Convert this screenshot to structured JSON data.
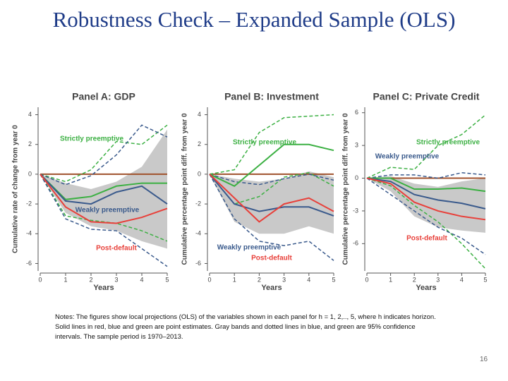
{
  "slide_title": "Robustness Check – Expanded Sample (OLS)",
  "notes": "Notes: The figures show local projections (OLS) of the variables shown in each panel for h = 1, 2,.., 5, where h indicates horizon. Solid lines in red, blue and green are point estimates. Gray bands and dotted lines in blue, and green are 95% confidence intervals. The sample period is 1970–2013.",
  "page_number": "16",
  "chart_data": [
    {
      "type": "line",
      "title": "Panel A: GDP",
      "xlabel": "Years",
      "ylabel": "Cumulative rate of change from year 0",
      "x": [
        0,
        1,
        2,
        3,
        4,
        5
      ],
      "xlim": [
        0,
        5
      ],
      "xticks": [
        0,
        1,
        2,
        3,
        4,
        5
      ],
      "ylim": [
        -6.5,
        4.5
      ],
      "yticks": [
        -6,
        -4,
        -2,
        0,
        2,
        4
      ],
      "band": {
        "color": "#c9c9c9",
        "lower": [
          0,
          -2.6,
          -3.5,
          -3.8,
          -4.5,
          -5.0
        ],
        "upper": [
          0,
          -0.6,
          -1.0,
          -0.5,
          0.5,
          3.0
        ]
      },
      "series": [
        {
          "color": "#a0522d",
          "style": "solid",
          "values": [
            0,
            0,
            0,
            0,
            0,
            0
          ]
        },
        {
          "color": "#3cb043",
          "style": "dashed",
          "values": [
            0,
            -0.5,
            0.3,
            2.2,
            2.0,
            3.3
          ]
        },
        {
          "color": "#3cb043",
          "style": "dashed",
          "values": [
            0,
            -2.8,
            -3.1,
            -3.3,
            -3.8,
            -4.5
          ]
        },
        {
          "color": "#3a5a8c",
          "style": "dashed",
          "values": [
            0,
            -0.7,
            -0.1,
            1.3,
            3.3,
            2.5
          ]
        },
        {
          "color": "#3a5a8c",
          "style": "dashed",
          "values": [
            0,
            -3.0,
            -3.7,
            -3.8,
            -5.0,
            -6.2
          ]
        },
        {
          "name": "Strictly preemptive",
          "color": "#3cb043",
          "style": "solid",
          "values": [
            0,
            -1.7,
            -1.5,
            -0.8,
            -0.6,
            -0.6
          ]
        },
        {
          "name": "Weakly preemptive",
          "color": "#3a5a8c",
          "style": "solid",
          "values": [
            0,
            -1.8,
            -2.0,
            -1.2,
            -0.8,
            -2.0
          ]
        },
        {
          "name": "Post-default",
          "color": "#e8403a",
          "style": "solid",
          "values": [
            0,
            -2.2,
            -3.2,
            -3.3,
            -2.9,
            -2.3
          ]
        }
      ]
    },
    {
      "type": "line",
      "title": "Panel B: Investment",
      "xlabel": "Years",
      "ylabel": "Cumulative percentage point diff. from year 0",
      "x": [
        0,
        1,
        2,
        3,
        4,
        5
      ],
      "xlim": [
        0,
        5
      ],
      "xticks": [
        0,
        1,
        2,
        3,
        4,
        5
      ],
      "ylim": [
        -6.5,
        4.5
      ],
      "yticks": [
        -6,
        -4,
        -2,
        0,
        2,
        4
      ],
      "band": {
        "color": "#c9c9c9",
        "lower": [
          0,
          -3.2,
          -4.0,
          -4.0,
          -3.5,
          -4.0
        ],
        "upper": [
          0,
          -0.3,
          -0.5,
          -0.3,
          0.2,
          -0.2
        ]
      },
      "series": [
        {
          "color": "#a0522d",
          "style": "solid",
          "values": [
            0,
            0,
            0,
            0,
            0,
            0
          ]
        },
        {
          "color": "#3cb043",
          "style": "dashed",
          "values": [
            0,
            0.3,
            2.8,
            3.8,
            3.9,
            4.0
          ]
        },
        {
          "color": "#3cb043",
          "style": "dashed",
          "values": [
            0,
            -2.0,
            -1.5,
            -0.2,
            0.1,
            -0.8
          ]
        },
        {
          "color": "#3a5a8c",
          "style": "dashed",
          "values": [
            0,
            -0.5,
            -0.7,
            -0.3,
            0,
            -0.4
          ]
        },
        {
          "color": "#3a5a8c",
          "style": "dashed",
          "values": [
            0,
            -3.0,
            -4.5,
            -4.8,
            -4.5,
            -5.8
          ]
        },
        {
          "name": "Strictly preemptive",
          "color": "#3cb043",
          "style": "solid",
          "values": [
            0,
            -0.8,
            0.6,
            2.0,
            2.0,
            1.6
          ]
        },
        {
          "name": "Weakly preemptive",
          "color": "#3a5a8c",
          "style": "solid",
          "values": [
            0,
            -2.0,
            -2.5,
            -2.2,
            -2.2,
            -2.8
          ]
        },
        {
          "name": "Post-default",
          "color": "#e8403a",
          "style": "solid",
          "values": [
            0,
            -1.6,
            -3.2,
            -2.0,
            -1.6,
            -2.5
          ]
        }
      ]
    },
    {
      "type": "line",
      "title": "Panel C: Private Credit",
      "xlabel": "Years",
      "ylabel": "Cumulative percentage point diff. from year 0",
      "x": [
        0,
        1,
        2,
        3,
        4,
        5
      ],
      "xlim": [
        0,
        5
      ],
      "xticks": [
        0,
        1,
        2,
        3,
        4,
        5
      ],
      "ylim": [
        -8.5,
        6.5
      ],
      "yticks": [
        -6,
        -3,
        0,
        3,
        6
      ],
      "band": {
        "color": "#c9c9c9",
        "lower": [
          0,
          -1.2,
          -3.5,
          -4.5,
          -4.8,
          -5.0
        ],
        "upper": [
          0,
          0.2,
          -0.5,
          -0.8,
          -0.3,
          0
        ]
      },
      "series": [
        {
          "color": "#a0522d",
          "style": "solid",
          "values": [
            0,
            0,
            0,
            0,
            0,
            0
          ]
        },
        {
          "color": "#3cb043",
          "style": "dashed",
          "values": [
            0,
            1.0,
            0.8,
            3.0,
            4.0,
            5.8
          ]
        },
        {
          "color": "#3cb043",
          "style": "dashed",
          "values": [
            0,
            -0.7,
            -2.5,
            -4.0,
            -6.0,
            -8.3
          ]
        },
        {
          "color": "#3a5a8c",
          "style": "dashed",
          "values": [
            0,
            0.3,
            0.3,
            0,
            0.5,
            0.3
          ]
        },
        {
          "color": "#3a5a8c",
          "style": "dashed",
          "values": [
            0,
            -1.5,
            -3.0,
            -4.5,
            -5.5,
            -7.0
          ]
        },
        {
          "name": "Strictly preemptive",
          "color": "#3cb043",
          "style": "solid",
          "values": [
            0,
            0,
            -1.0,
            -1.0,
            -0.9,
            -1.2
          ]
        },
        {
          "name": "Weakly preemptive",
          "color": "#3a5a8c",
          "style": "solid",
          "values": [
            0,
            -0.3,
            -1.5,
            -2.0,
            -2.3,
            -2.8
          ]
        },
        {
          "name": "Post-default",
          "color": "#e8403a",
          "style": "solid",
          "values": [
            0,
            -0.5,
            -2.2,
            -3.0,
            -3.5,
            -3.8
          ]
        }
      ]
    }
  ]
}
